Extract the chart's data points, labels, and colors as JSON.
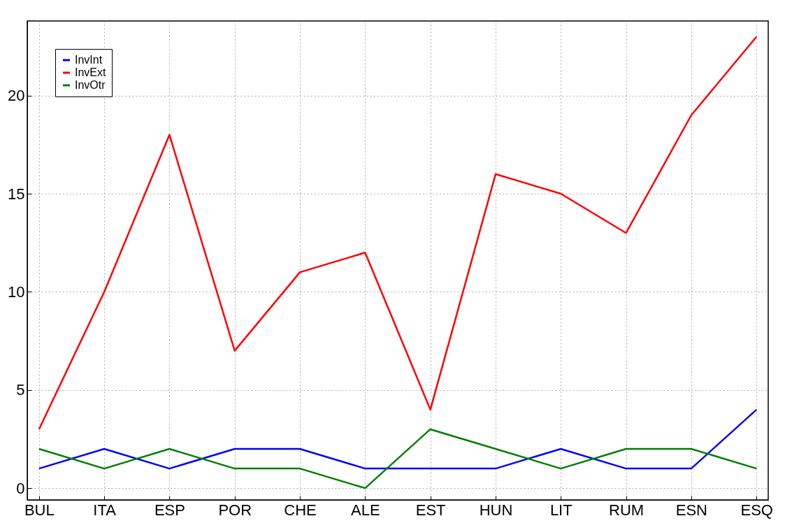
{
  "chart_data": {
    "type": "line",
    "categories": [
      "BUL",
      "ITA",
      "ESP",
      "POR",
      "CHE",
      "ALE",
      "EST",
      "HUN",
      "LIT",
      "RUM",
      "ESN",
      "ESQ"
    ],
    "series": [
      {
        "name": "InvInt",
        "color": "#0000ff",
        "values": [
          1,
          2,
          1,
          2,
          2,
          1,
          1,
          1,
          2,
          1,
          1,
          4
        ]
      },
      {
        "name": "InvExt",
        "color": "#ff0000",
        "values": [
          3,
          10,
          18,
          7,
          11,
          12,
          4,
          16,
          15,
          13,
          19,
          23
        ]
      },
      {
        "name": "InvOtr",
        "color": "#007f00",
        "values": [
          2,
          1,
          2,
          1,
          1,
          0,
          3,
          2,
          1,
          2,
          2,
          1
        ]
      }
    ],
    "ylim": [
      -0.6,
      23.8
    ],
    "yticks": [
      0,
      5,
      10,
      15,
      20
    ],
    "grid": true,
    "legend": "top left",
    "line_style": "solid"
  }
}
